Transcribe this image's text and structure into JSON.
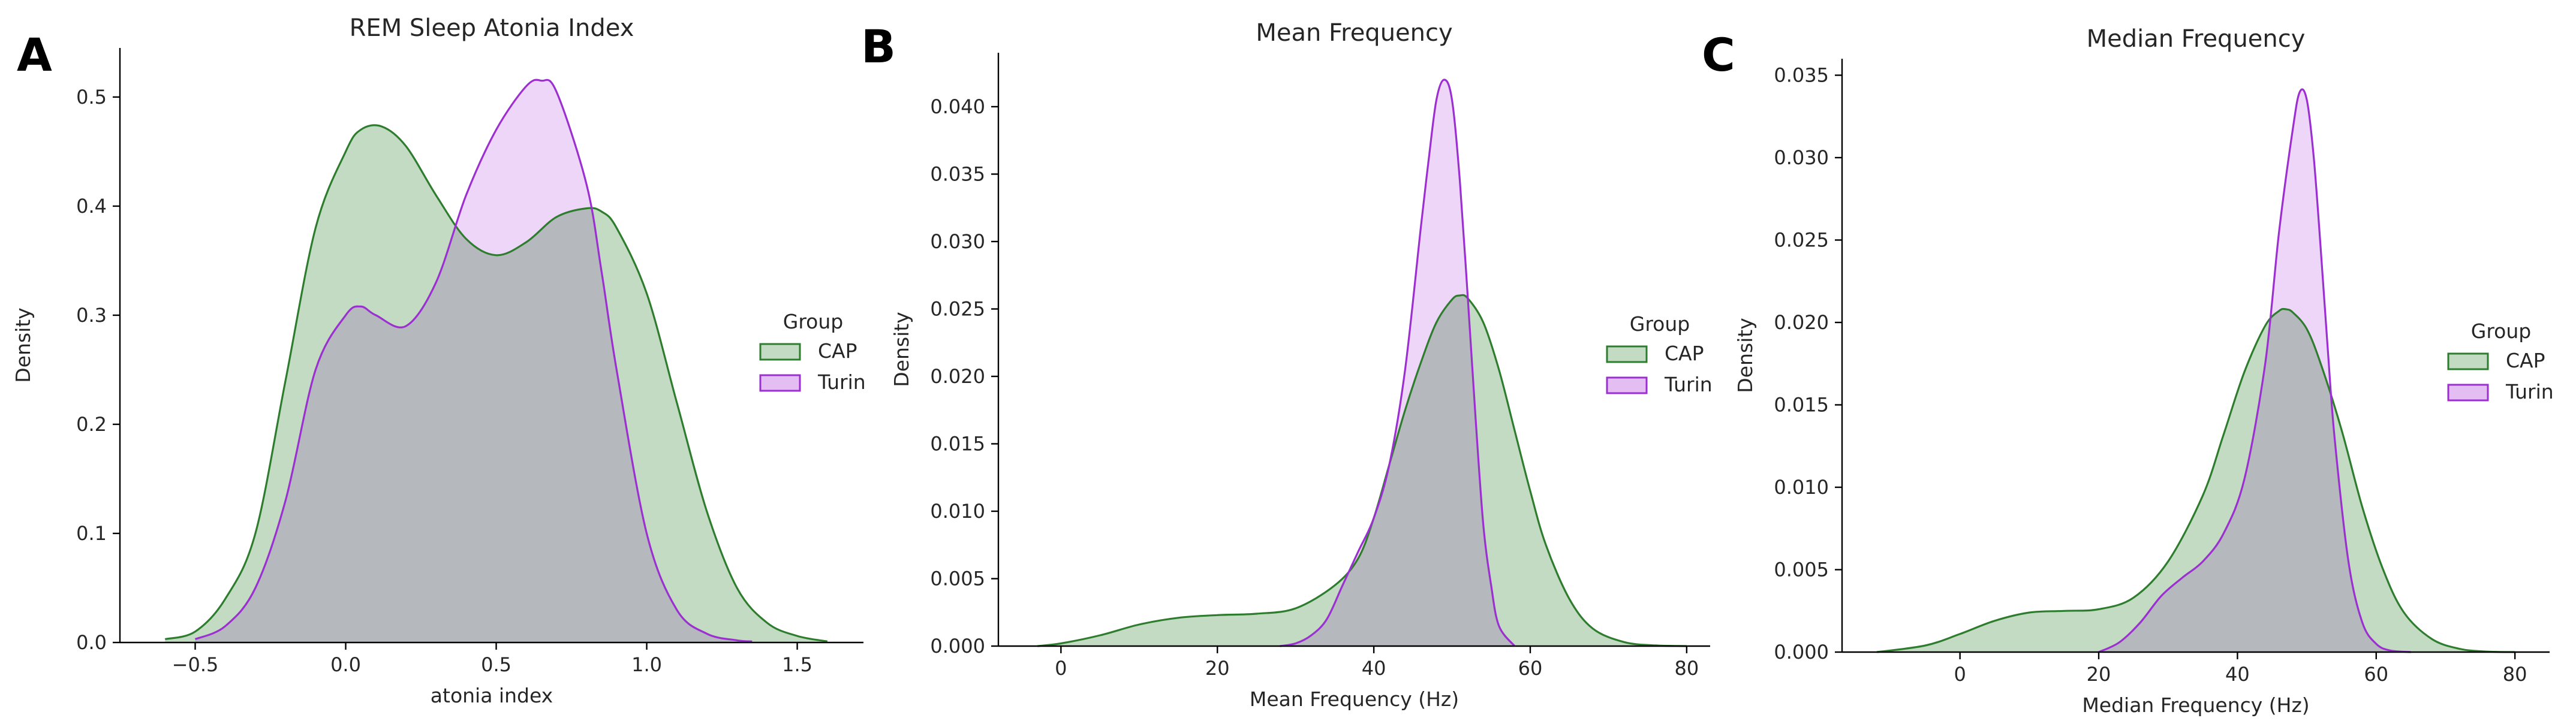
{
  "chart_data": [
    {
      "type": "area",
      "panel_label": "A",
      "title": "REM Sleep Atonia Index",
      "xlabel": "atonia index",
      "ylabel": "Density",
      "xlim": [
        -0.75,
        1.72
      ],
      "ylim": [
        0,
        0.545
      ],
      "xticks": [
        -0.5,
        0.0,
        0.5,
        1.0,
        1.5
      ],
      "xtick_labels": [
        "−0.5",
        "0.0",
        "0.5",
        "1.0",
        "1.5"
      ],
      "yticks": [
        0.0,
        0.1,
        0.2,
        0.3,
        0.4,
        0.5
      ],
      "ytick_labels": [
        "0.0",
        "0.1",
        "0.2",
        "0.3",
        "0.4",
        "0.5"
      ],
      "legend": {
        "title": "Group",
        "position": "center-right"
      },
      "series": [
        {
          "name": "CAP",
          "fill": "#c2dbc2",
          "line": "#2e7d2e",
          "x": [
            -0.6,
            -0.5,
            -0.4,
            -0.3,
            -0.2,
            -0.1,
            0.0,
            0.05,
            0.12,
            0.2,
            0.3,
            0.4,
            0.5,
            0.6,
            0.7,
            0.8,
            0.85,
            0.9,
            1.0,
            1.1,
            1.2,
            1.3,
            1.4,
            1.5,
            1.6
          ],
          "y": [
            0.003,
            0.01,
            0.04,
            0.1,
            0.24,
            0.38,
            0.45,
            0.47,
            0.473,
            0.455,
            0.41,
            0.37,
            0.355,
            0.367,
            0.39,
            0.398,
            0.395,
            0.38,
            0.32,
            0.22,
            0.12,
            0.05,
            0.018,
            0.006,
            0.001
          ]
        },
        {
          "name": "Turin",
          "fill": "#e4bdf3",
          "line": "#9b2fd0",
          "x": [
            -0.5,
            -0.4,
            -0.3,
            -0.2,
            -0.1,
            0.0,
            0.05,
            0.1,
            0.2,
            0.3,
            0.4,
            0.5,
            0.6,
            0.65,
            0.7,
            0.8,
            0.85,
            0.9,
            1.0,
            1.1,
            1.2,
            1.3,
            1.35
          ],
          "y": [
            0.003,
            0.015,
            0.05,
            0.13,
            0.25,
            0.3,
            0.308,
            0.3,
            0.29,
            0.33,
            0.41,
            0.47,
            0.51,
            0.515,
            0.505,
            0.42,
            0.34,
            0.25,
            0.1,
            0.03,
            0.008,
            0.002,
            0.001
          ]
        }
      ]
    },
    {
      "type": "area",
      "panel_label": "B",
      "title": "Mean Frequency",
      "xlabel": "Mean Frequency (Hz)",
      "ylabel": "Density",
      "xlim": [
        -8,
        83
      ],
      "ylim": [
        0,
        0.044
      ],
      "xticks": [
        0,
        20,
        40,
        60,
        80
      ],
      "xtick_labels": [
        "0",
        "20",
        "40",
        "60",
        "80"
      ],
      "yticks": [
        0.0,
        0.005,
        0.01,
        0.015,
        0.02,
        0.025,
        0.03,
        0.035,
        0.04
      ],
      "ytick_labels": [
        "0.000",
        "0.005",
        "0.010",
        "0.015",
        "0.020",
        "0.025",
        "0.030",
        "0.035",
        "0.040"
      ],
      "legend": {
        "title": "Group",
        "position": "center-right"
      },
      "series": [
        {
          "name": "CAP",
          "fill": "#c2dbc2",
          "line": "#2e7d2e",
          "x": [
            -3,
            0,
            5,
            10,
            15,
            20,
            25,
            30,
            35,
            38,
            40,
            42,
            44,
            46,
            48,
            50,
            51,
            52,
            54,
            56,
            58,
            60,
            62,
            65,
            68,
            72,
            76,
            80
          ],
          "y": [
            0.0,
            0.0002,
            0.0008,
            0.0016,
            0.0021,
            0.0023,
            0.0024,
            0.0028,
            0.0045,
            0.0065,
            0.0095,
            0.0135,
            0.0175,
            0.021,
            0.024,
            0.0257,
            0.026,
            0.0258,
            0.024,
            0.0205,
            0.016,
            0.0115,
            0.0075,
            0.0035,
            0.0013,
            0.0003,
            5e-05,
            0.0
          ]
        },
        {
          "name": "Turin",
          "fill": "#e4bdf3",
          "line": "#9b2fd0",
          "x": [
            28,
            30,
            32,
            34,
            36,
            38,
            40,
            42,
            44,
            46,
            47,
            48,
            49,
            50,
            51,
            52,
            53,
            54,
            55,
            56,
            58
          ],
          "y": [
            0.0,
            0.0002,
            0.0008,
            0.002,
            0.0045,
            0.007,
            0.0095,
            0.0135,
            0.0205,
            0.031,
            0.036,
            0.0405,
            0.042,
            0.0405,
            0.0345,
            0.026,
            0.017,
            0.009,
            0.0045,
            0.0015,
            0.0
          ]
        }
      ]
    },
    {
      "type": "area",
      "panel_label": "C",
      "title": "Median Frequency",
      "xlabel": "Median Frequency (Hz)",
      "ylabel": "Density",
      "xlim": [
        -17,
        85
      ],
      "ylim": [
        0,
        0.036
      ],
      "xticks": [
        0,
        20,
        40,
        60,
        80
      ],
      "xtick_labels": [
        "0",
        "20",
        "40",
        "60",
        "80"
      ],
      "yticks": [
        0.0,
        0.005,
        0.01,
        0.015,
        0.02,
        0.025,
        0.03,
        0.035
      ],
      "ytick_labels": [
        "0.000",
        "0.005",
        "0.010",
        "0.015",
        "0.020",
        "0.025",
        "0.030",
        "0.035"
      ],
      "legend": {
        "title": "Group",
        "position": "center-right"
      },
      "series": [
        {
          "name": "CAP",
          "fill": "#c2dbc2",
          "line": "#2e7d2e",
          "x": [
            -12,
            -5,
            0,
            5,
            10,
            15,
            20,
            25,
            30,
            35,
            38,
            41,
            44,
            46,
            47,
            48,
            50,
            52,
            55,
            58,
            61,
            64,
            68,
            72,
            76,
            80
          ],
          "y": [
            0.0,
            0.0004,
            0.0011,
            0.0019,
            0.0024,
            0.0025,
            0.0026,
            0.0033,
            0.0055,
            0.0095,
            0.0132,
            0.017,
            0.0198,
            0.0207,
            0.0208,
            0.0206,
            0.0196,
            0.0175,
            0.0135,
            0.0088,
            0.005,
            0.0024,
            0.0008,
            0.0002,
            3e-05,
            0.0
          ]
        },
        {
          "name": "Turin",
          "fill": "#e4bdf3",
          "line": "#9b2fd0",
          "x": [
            20,
            23,
            26,
            29,
            32,
            35,
            38,
            41,
            44,
            46,
            48,
            49,
            50,
            51,
            52,
            53,
            54,
            56,
            58,
            60,
            62,
            65
          ],
          "y": [
            0.0,
            0.0006,
            0.0018,
            0.0034,
            0.0045,
            0.0055,
            0.0072,
            0.0105,
            0.0175,
            0.0255,
            0.0318,
            0.034,
            0.0335,
            0.03,
            0.0245,
            0.0185,
            0.013,
            0.0055,
            0.0018,
            0.0005,
            0.0001,
            0.0
          ]
        }
      ]
    }
  ]
}
